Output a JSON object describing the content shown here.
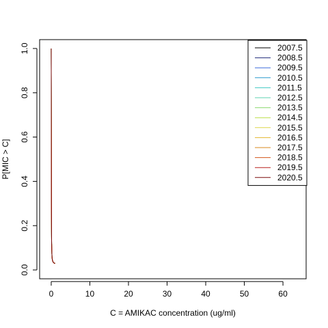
{
  "chart_data": {
    "type": "line",
    "title": "",
    "xlabel": "C = AMIKAC concentration (ug/ml)",
    "ylabel": "P[MIC > C]",
    "xlim": [
      -3,
      66
    ],
    "ylim": [
      -0.04,
      1.04
    ],
    "xticks": [
      0,
      10,
      20,
      30,
      40,
      50,
      60
    ],
    "xtick_labels": [
      "0",
      "10",
      "20",
      "30",
      "40",
      "50",
      "60"
    ],
    "yticks": [
      0.0,
      0.2,
      0.4,
      0.6,
      0.8,
      1.0
    ],
    "ytick_labels": [
      "0.0",
      "0.2",
      "0.4",
      "0.6",
      "0.8",
      "1.0"
    ],
    "grid": false,
    "legend_position": "top-right",
    "series": [
      {
        "name": "2007.5",
        "color": "#000000",
        "x": [
          0,
          0.05,
          0.1,
          0.2,
          0.3,
          0.5,
          0.8,
          1.0
        ],
        "y": [
          1.0,
          0.3,
          0.12,
          0.06,
          0.045,
          0.035,
          0.03,
          0.03
        ]
      },
      {
        "name": "2008.5",
        "color": "#1F2A7A",
        "x": [
          0,
          0.05,
          0.1,
          0.2,
          0.3,
          0.5,
          0.8,
          1.0
        ],
        "y": [
          1.0,
          0.3,
          0.12,
          0.06,
          0.045,
          0.035,
          0.03,
          0.03
        ]
      },
      {
        "name": "2009.5",
        "color": "#3F6FDB",
        "x": [
          0,
          0.05,
          0.1,
          0.2,
          0.3,
          0.5,
          0.8,
          1.0
        ],
        "y": [
          1.0,
          0.3,
          0.12,
          0.06,
          0.045,
          0.035,
          0.03,
          0.03
        ]
      },
      {
        "name": "2010.5",
        "color": "#2C9ACD",
        "x": [
          0,
          0.05,
          0.1,
          0.2,
          0.3,
          0.5,
          0.8,
          1.0
        ],
        "y": [
          1.0,
          0.3,
          0.12,
          0.06,
          0.045,
          0.035,
          0.03,
          0.03
        ]
      },
      {
        "name": "2011.5",
        "color": "#3FC8C2",
        "x": [
          0,
          0.05,
          0.1,
          0.2,
          0.3,
          0.5,
          0.8,
          1.0
        ],
        "y": [
          1.0,
          0.3,
          0.12,
          0.06,
          0.045,
          0.035,
          0.03,
          0.03
        ]
      },
      {
        "name": "2012.5",
        "color": "#5CD3B0",
        "x": [
          0,
          0.05,
          0.1,
          0.2,
          0.3,
          0.5,
          0.8,
          1.0
        ],
        "y": [
          1.0,
          0.3,
          0.12,
          0.06,
          0.045,
          0.035,
          0.03,
          0.03
        ]
      },
      {
        "name": "2013.5",
        "color": "#8BDA6F",
        "x": [
          0,
          0.05,
          0.1,
          0.2,
          0.3,
          0.5,
          0.8,
          1.0
        ],
        "y": [
          1.0,
          0.3,
          0.12,
          0.06,
          0.045,
          0.035,
          0.03,
          0.03
        ]
      },
      {
        "name": "2014.5",
        "color": "#B9DD45",
        "x": [
          0,
          0.05,
          0.1,
          0.2,
          0.3,
          0.5,
          0.8,
          1.0
        ],
        "y": [
          1.0,
          0.3,
          0.12,
          0.06,
          0.045,
          0.035,
          0.03,
          0.03
        ]
      },
      {
        "name": "2015.5",
        "color": "#DDD54A",
        "x": [
          0,
          0.05,
          0.1,
          0.2,
          0.3,
          0.5,
          0.8,
          1.0
        ],
        "y": [
          1.0,
          0.3,
          0.12,
          0.06,
          0.045,
          0.035,
          0.03,
          0.03
        ]
      },
      {
        "name": "2016.5",
        "color": "#E2B62E",
        "x": [
          0,
          0.05,
          0.1,
          0.2,
          0.3,
          0.5,
          0.8,
          1.0
        ],
        "y": [
          1.0,
          0.3,
          0.12,
          0.06,
          0.045,
          0.035,
          0.03,
          0.03
        ]
      },
      {
        "name": "2017.5",
        "color": "#D98A1C",
        "x": [
          0,
          0.05,
          0.1,
          0.2,
          0.3,
          0.5,
          0.8,
          1.0
        ],
        "y": [
          1.0,
          0.3,
          0.12,
          0.06,
          0.045,
          0.035,
          0.03,
          0.03
        ]
      },
      {
        "name": "2018.5",
        "color": "#D2541A",
        "x": [
          0,
          0.05,
          0.1,
          0.2,
          0.3,
          0.5,
          0.8,
          1.0
        ],
        "y": [
          1.0,
          0.3,
          0.12,
          0.06,
          0.045,
          0.035,
          0.03,
          0.03
        ]
      },
      {
        "name": "2019.5",
        "color": "#B8211A",
        "x": [
          0,
          0.05,
          0.1,
          0.2,
          0.3,
          0.5,
          0.8,
          1.0
        ],
        "y": [
          1.0,
          0.3,
          0.12,
          0.06,
          0.045,
          0.035,
          0.03,
          0.03
        ]
      },
      {
        "name": "2020.5",
        "color": "#7A0A0A",
        "x": [
          0,
          0.05,
          0.1,
          0.2,
          0.3,
          0.5,
          0.8,
          1.0
        ],
        "y": [
          1.0,
          0.3,
          0.12,
          0.06,
          0.045,
          0.035,
          0.03,
          0.03
        ]
      }
    ]
  }
}
